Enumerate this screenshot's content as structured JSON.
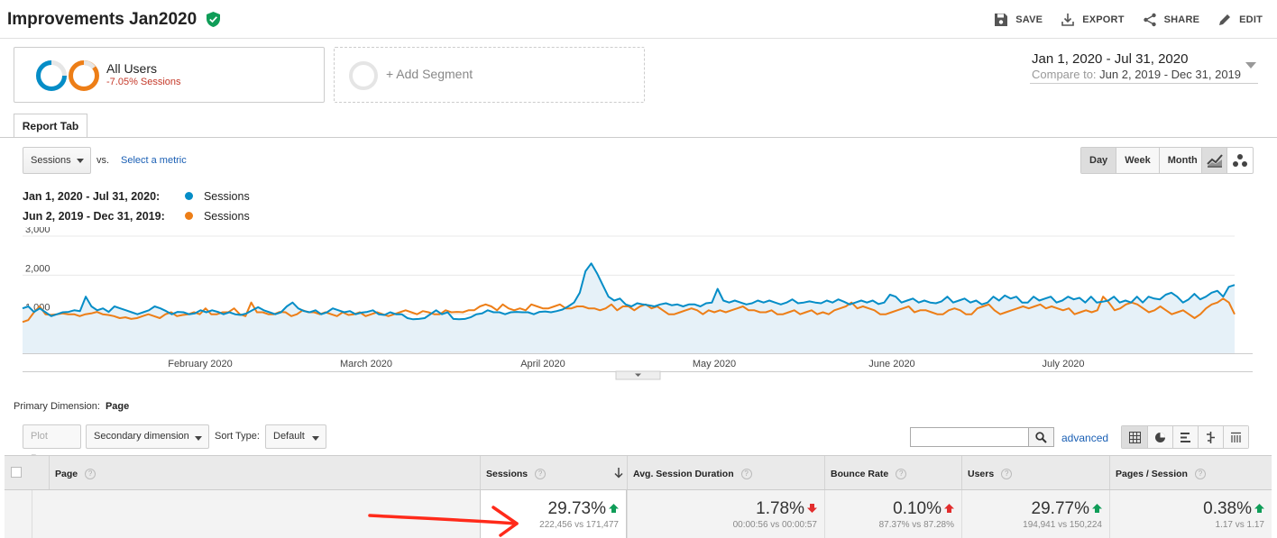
{
  "header": {
    "title": "Improvements Jan2020",
    "actions": [
      {
        "label": "SAVE",
        "icon": "save-icon"
      },
      {
        "label": "EXPORT",
        "icon": "export-icon"
      },
      {
        "label": "SHARE",
        "icon": "share-icon"
      },
      {
        "label": "EDIT",
        "icon": "edit-icon"
      }
    ]
  },
  "segments": {
    "primary": {
      "name": "All Users",
      "sub": "-7.05% Sessions"
    },
    "add": "+ Add Segment"
  },
  "date_range": {
    "main": "Jan 1, 2020 - Jul 31, 2020",
    "compare_label": "Compare to:",
    "compare": "Jun 2, 2019 - Dec 31, 2019"
  },
  "tab": "Report Tab",
  "controls": {
    "metric": "Sessions",
    "vs": "vs.",
    "select_metric": "Select a metric",
    "granularity": [
      "Day",
      "Week",
      "Month"
    ]
  },
  "legend": [
    {
      "range": "Jan 1, 2020 - Jul 31, 2020:",
      "metric": "Sessions",
      "color": "#058dc7"
    },
    {
      "range": "Jun 2, 2019 - Dec 31, 2019:",
      "metric": "Sessions",
      "color": "#ed7e17"
    }
  ],
  "chart_data": {
    "type": "line",
    "yticks": [
      "3,000",
      "2,000",
      "1,000"
    ],
    "ylim": [
      0,
      3000
    ],
    "xticks": [
      "February 2020",
      "March 2020",
      "April 2020",
      "May 2020",
      "June 2020",
      "July 2020"
    ],
    "series": [
      {
        "name": "Sessions",
        "color": "#058dc7",
        "values": [
          1150,
          1200,
          1060,
          1150,
          1050,
          950,
          1000,
          1050,
          1060,
          1100,
          1080,
          1450,
          1200,
          1100,
          1150,
          1060,
          1200,
          1150,
          1100,
          1050,
          1000,
          1050,
          1100,
          1200,
          1150,
          1080,
          1000,
          1060,
          1050,
          1000,
          1020,
          1100,
          1050,
          1100,
          1060,
          1000,
          1050,
          1000,
          980,
          1020,
          1100,
          1180,
          1100,
          1050,
          1000,
          1050,
          1200,
          1300,
          1150,
          1080,
          1050,
          1100,
          1000,
          1050,
          1150,
          1100,
          1050,
          1080,
          1000,
          1040,
          1060,
          1100,
          1000,
          980,
          1050,
          1000,
          1000,
          900,
          870,
          880,
          900,
          1000,
          1100,
          1000,
          1050,
          880,
          870,
          880,
          920,
          1000,
          1020,
          1100,
          1050,
          1050,
          1000,
          1050,
          1060,
          1050,
          1050,
          1000,
          1060,
          1070,
          1050,
          1080,
          1120,
          1200,
          1300,
          1550,
          2100,
          2300,
          2050,
          1750,
          1450,
          1350,
          1400,
          1250,
          1200,
          1280,
          1250,
          1230,
          1200,
          1250,
          1280,
          1230,
          1250,
          1200,
          1250,
          1250,
          1200,
          1280,
          1300,
          1650,
          1350,
          1300,
          1350,
          1300,
          1250,
          1280,
          1350,
          1300,
          1350,
          1300,
          1250,
          1300,
          1380,
          1280,
          1300,
          1330,
          1300,
          1280,
          1350,
          1300,
          1380,
          1320,
          1250,
          1300,
          1350,
          1300,
          1350,
          1260,
          1300,
          1500,
          1450,
          1300,
          1350,
          1400,
          1300,
          1350,
          1300,
          1280,
          1330,
          1450,
          1300,
          1350,
          1400,
          1300,
          1350,
          1250,
          1300,
          1450,
          1350,
          1480,
          1400,
          1450,
          1300,
          1300,
          1450,
          1350,
          1400,
          1450,
          1300,
          1350,
          1450,
          1380,
          1420,
          1300,
          1450,
          1300,
          1320,
          1350,
          1450,
          1300,
          1350,
          1300,
          1450,
          1300,
          1450,
          1400,
          1380,
          1500,
          1550,
          1450,
          1300,
          1380,
          1520,
          1380,
          1450,
          1550,
          1600,
          1450,
          1700,
          1750
        ]
      },
      {
        "name": "Sessions",
        "color": "#ed7e17",
        "values": [
          800,
          850,
          1050,
          1200,
          1000,
          980,
          1000,
          1020,
          1000,
          1000,
          950,
          1000,
          1020,
          1060,
          1000,
          980,
          950,
          900,
          920,
          880,
          900,
          950,
          1000,
          950,
          900,
          1000,
          1050,
          950,
          980,
          1000,
          1050,
          1000,
          1150,
          1000,
          1000,
          1050,
          1050,
          1150,
          1000,
          950,
          1300,
          1050,
          1050,
          1000,
          1000,
          1060,
          1050,
          950,
          1000,
          1100,
          1050,
          1050,
          1000,
          1050,
          1000,
          950,
          1050,
          980,
          1000,
          1050,
          950,
          1000,
          1050,
          1000,
          950,
          1000,
          1050,
          1100,
          1050,
          1000,
          1080,
          1050,
          1000,
          1000,
          1100,
          1050,
          1060,
          1050,
          1100,
          1100,
          1200,
          1250,
          1200,
          1100,
          1250,
          1150,
          1100,
          1150,
          1100,
          1250,
          1200,
          1150,
          1150,
          1200,
          1250,
          1150,
          1150,
          1200,
          1200,
          1150,
          1150,
          1100,
          1150,
          1250,
          1100,
          1200,
          1200,
          1100,
          1200,
          1250,
          1150,
          1200,
          1100,
          1000,
          1000,
          1050,
          1100,
          1150,
          1100,
          1000,
          1100,
          1050,
          1100,
          1050,
          1100,
          1150,
          1200,
          1100,
          1100,
          1050,
          1050,
          1100,
          1000,
          1000,
          1050,
          1100,
          1000,
          1050,
          1100,
          1000,
          1050,
          1000,
          1100,
          1150,
          1200,
          1300,
          1150,
          1200,
          1150,
          1100,
          1000,
          1000,
          1050,
          1100,
          1150,
          1200,
          1050,
          1100,
          1100,
          1050,
          1000,
          1000,
          1100,
          1150,
          1100,
          1000,
          1000,
          1150,
          1200,
          1250,
          1100,
          1000,
          1050,
          1100,
          1150,
          1200,
          1150,
          1200,
          1250,
          1150,
          1200,
          1150,
          1100,
          1150,
          1000,
          1050,
          1100,
          1050,
          1100,
          1450,
          1300,
          1100,
          1150,
          1250,
          1300,
          1250,
          1150,
          1050,
          1100,
          1200,
          1100,
          1000,
          1050,
          1100,
          1000,
          900,
          1000,
          1150,
          1250,
          1300,
          1400,
          1300,
          1000
        ]
      }
    ]
  },
  "table_controls": {
    "primary_dimension_label": "Primary Dimension:",
    "primary_dimension_value": "Page",
    "plot_rows": "Plot Rows",
    "secondary_dimension": "Secondary dimension",
    "sort_type_label": "Sort Type:",
    "sort_type_value": "Default",
    "advanced": "advanced"
  },
  "table": {
    "columns": [
      "Page",
      "Sessions",
      "Avg. Session Duration",
      "Bounce Rate",
      "Users",
      "Pages / Session"
    ],
    "totals": [
      {
        "pct": "29.73%",
        "trend": "up",
        "cmp": "222,456 vs 171,477"
      },
      {
        "pct": "1.78%",
        "trend": "down",
        "cmp": "00:00:56 vs 00:00:57"
      },
      {
        "pct": "0.10%",
        "trend": "up-red",
        "cmp": "87.37% vs 87.28%"
      },
      {
        "pct": "29.77%",
        "trend": "up",
        "cmp": "194,941 vs 150,224"
      },
      {
        "pct": "0.38%",
        "trend": "up",
        "cmp": "1.17 vs 1.17"
      }
    ]
  }
}
